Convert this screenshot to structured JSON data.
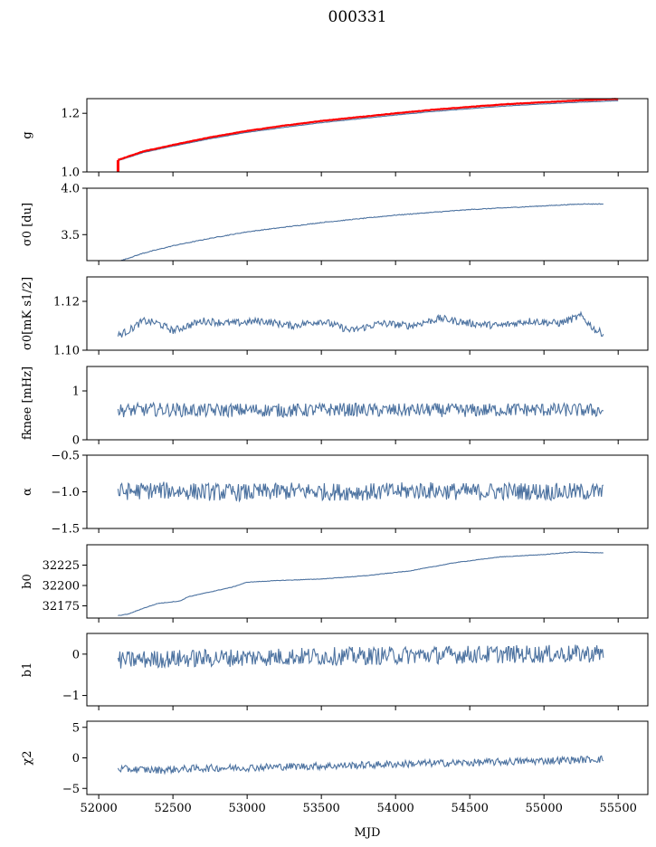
{
  "title": "000331",
  "chart_data": {
    "type": "line",
    "xlabel": "MJD",
    "xlim": [
      51920,
      55700
    ],
    "x_ticks": [
      "52000",
      "52500",
      "53000",
      "53500",
      "54000",
      "54500",
      "55000",
      "55500"
    ],
    "colors": {
      "line": "#4c72a0",
      "overlay": "#ff0000"
    },
    "panels": [
      {
        "ylabel": "g",
        "ylim": [
          1.0,
          1.25
        ],
        "y_ticks": [
          "1.0",
          "1.2"
        ],
        "series": [
          {
            "x": [
              52130,
              52300,
              52500,
              52750,
              53000,
              53250,
              53500,
              53750,
              54000,
              54250,
              54500,
              54750,
              55000,
              55250,
              55500
            ],
            "y": [
              1.038,
              1.066,
              1.088,
              1.113,
              1.135,
              1.152,
              1.168,
              1.181,
              1.194,
              1.206,
              1.216,
              1.225,
              1.232,
              1.238,
              1.243
            ]
          },
          {
            "x": [
              52130,
              52300,
              52500,
              52750,
              53000,
              53250,
              53500,
              53750,
              54000,
              54250,
              54500,
              54750,
              55000,
              55250,
              55500
            ],
            "y": [
              1.041,
              1.07,
              1.092,
              1.118,
              1.14,
              1.158,
              1.174,
              1.187,
              1.2,
              1.212,
              1.222,
              1.231,
              1.238,
              1.244,
              1.249
            ]
          }
        ]
      },
      {
        "ylabel": "σ0 [du]",
        "ylim": [
          3.22,
          4.0
        ],
        "y_ticks": [
          "3.5",
          "4.0"
        ],
        "series": [
          {
            "x": [
              52150,
              52300,
              52500,
              52750,
              53000,
              53250,
              53500,
              53750,
              54000,
              54250,
              54500,
              54750,
              55000,
              55250,
              55400
            ],
            "y": [
              3.22,
              3.3,
              3.38,
              3.46,
              3.53,
              3.58,
              3.63,
              3.67,
              3.71,
              3.74,
              3.77,
              3.79,
              3.81,
              3.83,
              3.83
            ]
          }
        ]
      },
      {
        "ylabel": "σ0[mK s1/2]",
        "ylim": [
          1.1,
          1.13
        ],
        "y_ticks": [
          "1.10",
          "1.12"
        ],
        "series": [
          {
            "x": [
              52130,
              52200,
              52300,
              52400,
              52500,
              52700,
              52900,
              53100,
              53300,
              53500,
              53700,
              53900,
              54100,
              54300,
              54500,
              54700,
              54900,
              55100,
              55250,
              55350,
              55400
            ],
            "y": [
              1.106,
              1.108,
              1.112,
              1.111,
              1.108,
              1.112,
              1.111,
              1.112,
              1.11,
              1.112,
              1.108,
              1.111,
              1.11,
              1.113,
              1.111,
              1.11,
              1.112,
              1.111,
              1.114,
              1.108,
              1.107
            ]
          }
        ]
      },
      {
        "ylabel": "fknee [mHz]",
        "ylim": [
          0.0,
          1.5
        ],
        "y_ticks": [
          "0",
          "1"
        ],
        "series": [
          {
            "x": [
              52130,
              52400,
              52700,
              53000,
              53300,
              53600,
              53900,
              54200,
              54500,
              54800,
              55100,
              55400
            ],
            "y": [
              0.6,
              0.62,
              0.6,
              0.61,
              0.6,
              0.62,
              0.6,
              0.61,
              0.6,
              0.62,
              0.61,
              0.6
            ]
          }
        ]
      },
      {
        "ylabel": "α",
        "ylim": [
          -1.5,
          -0.5
        ],
        "y_ticks": [
          "−1.5",
          "−1.0",
          "−0.5"
        ],
        "series": [
          {
            "x": [
              52130,
              52400,
              52700,
              53000,
              53300,
              53600,
              53900,
              54200,
              54500,
              54800,
              55100,
              55400
            ],
            "y": [
              -1.0,
              -0.98,
              -1.0,
              -1.01,
              -0.99,
              -1.0,
              -1.0,
              -0.98,
              -1.0,
              -0.99,
              -1.0,
              -1.0
            ]
          }
        ]
      },
      {
        "ylabel": "b0",
        "ylim": [
          32160,
          32250
        ],
        "y_ticks": [
          "32175",
          "32200",
          "32225"
        ],
        "series": [
          {
            "x": [
              52130,
              52200,
              52300,
              52400,
              52550,
              52600,
              52750,
              52900,
              53000,
              53200,
              53500,
              53800,
              54100,
              54400,
              54700,
              55000,
              55200,
              55400
            ],
            "y": [
              32163,
              32165,
              32172,
              32178,
              32181,
              32186,
              32192,
              32198,
              32204,
              32206,
              32208,
              32212,
              32218,
              32228,
              32235,
              32238,
              32241,
              32240
            ]
          }
        ]
      },
      {
        "ylabel": "b1",
        "ylim": [
          -1.25,
          0.5
        ],
        "y_ticks": [
          "−1",
          "0"
        ],
        "series": [
          {
            "x": [
              52130,
              52400,
              52700,
              53000,
              53300,
              53600,
              53900,
              54200,
              54500,
              54800,
              55100,
              55400
            ],
            "y": [
              -0.15,
              -0.12,
              -0.1,
              -0.08,
              -0.06,
              -0.05,
              -0.04,
              -0.02,
              -0.01,
              0.0,
              0.0,
              0.02
            ]
          }
        ]
      },
      {
        "ylabel": "χ2",
        "ylim": [
          -6,
          6
        ],
        "y_ticks": [
          "−5",
          "0",
          "5"
        ],
        "series": [
          {
            "x": [
              52130,
              52400,
              52700,
              53000,
              53300,
              53600,
              53900,
              54200,
              54500,
              54800,
              55100,
              55400
            ],
            "y": [
              -1.8,
              -2.0,
              -1.7,
              -1.6,
              -1.4,
              -1.3,
              -1.1,
              -0.9,
              -0.8,
              -0.6,
              -0.4,
              -0.2
            ]
          }
        ]
      }
    ]
  }
}
